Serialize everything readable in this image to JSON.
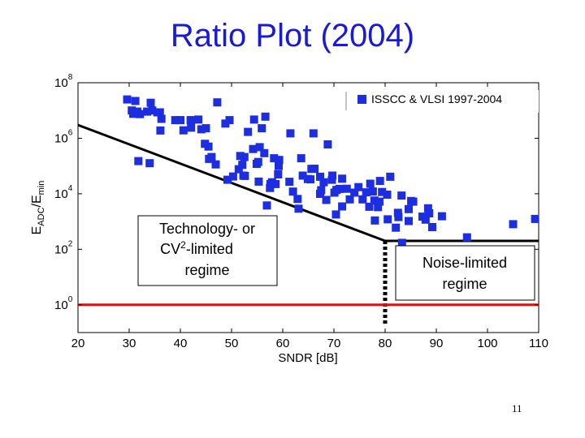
{
  "slide": {
    "title": "Ratio Plot (2004)",
    "page_number": "11"
  },
  "colors": {
    "marker": "#1c2ee0",
    "trend": "#000000",
    "floor": "#e01010",
    "title": "#1a1ad6"
  },
  "chart_data": {
    "type": "scatter",
    "title": "",
    "xlabel": "SNDR [dB]",
    "ylabel": "E_ADC/E_min",
    "xscale": "linear",
    "yscale": "log",
    "xlim": [
      20,
      110
    ],
    "ylim": [
      0.1,
      100000000
    ],
    "xticks": [
      20,
      30,
      40,
      50,
      60,
      70,
      80,
      90,
      100,
      110
    ],
    "yticks": [
      {
        "value": 1,
        "base": "10",
        "exp": "0"
      },
      {
        "value": 100,
        "base": "10",
        "exp": "2"
      },
      {
        "value": 10000,
        "base": "10",
        "exp": "4"
      },
      {
        "value": 1000000,
        "base": "10",
        "exp": "6"
      },
      {
        "value": 100000000,
        "base": "10",
        "exp": "8"
      }
    ],
    "grid": false,
    "legend_position": "top-right",
    "series": [
      {
        "name": "ISSCC & VLSI 1997-2004",
        "marker": "square",
        "points": [
          [
            29.6,
            25000000.0
          ],
          [
            30.5,
            10000000.0
          ],
          [
            30.8,
            7600000.0
          ],
          [
            31.2,
            22000000.0
          ],
          [
            31.6,
            9100000.0
          ],
          [
            31.8,
            150000.0
          ],
          [
            32.1,
            7400000.0
          ],
          [
            33.5,
            9100000.0
          ],
          [
            34.0,
            126000.0
          ],
          [
            34.2,
            19000000.0
          ],
          [
            34.5,
            10000000.0
          ],
          [
            35.5,
            8600000.0
          ],
          [
            36.0,
            8600000.0
          ],
          [
            36.3,
            5000000.0
          ],
          [
            36.1,
            1900000.0
          ],
          [
            39.0,
            4500000.0
          ],
          [
            40.0,
            4500000.0
          ],
          [
            40.6,
            1920000.0
          ],
          [
            42.0,
            4500000.0
          ],
          [
            42.1,
            2400000.0
          ],
          [
            43.5,
            4700000.0
          ],
          [
            44.1,
            2100000.0
          ],
          [
            44.8,
            630000.0
          ],
          [
            45.0,
            2300000.0
          ],
          [
            45.5,
            500000.0
          ],
          [
            45.6,
            180000.0
          ],
          [
            46.1,
            210000.0
          ],
          [
            46.9,
            114000.0
          ],
          [
            47.2,
            19600000.0
          ],
          [
            48.8,
            3400000.0
          ],
          [
            49.2,
            32000.0
          ],
          [
            49.6,
            4500000.0
          ],
          [
            50.3,
            42000.0
          ],
          [
            51.4,
            77000.0
          ],
          [
            51.7,
            230000.0
          ],
          [
            52.1,
            110000.0
          ],
          [
            52.3,
            45000.0
          ],
          [
            52.5,
            210000.0
          ],
          [
            52.6,
            44000.0
          ],
          [
            53.2,
            1700000.0
          ],
          [
            54.2,
            410000.0
          ],
          [
            54.4,
            4700000.0
          ],
          [
            54.9,
            120000.0
          ],
          [
            55.2,
            140000.0
          ],
          [
            55.3,
            27400.0
          ],
          [
            55.5,
            480000.0
          ],
          [
            55.9,
            2300000.0
          ],
          [
            56.4,
            290000.0
          ],
          [
            56.6,
            6000000.0
          ],
          [
            56.9,
            3800.0
          ],
          [
            57.5,
            16200.0
          ],
          [
            57.6,
            22400.0
          ],
          [
            57.9,
            26000.0
          ],
          [
            58.3,
            190000.0
          ],
          [
            58.6,
            22400.0
          ],
          [
            59.1,
            50000.0
          ],
          [
            59.2,
            100000.0
          ],
          [
            59.3,
            165000.0
          ],
          [
            61.3,
            27000.0
          ],
          [
            61.5,
            1500000.0
          ],
          [
            62.0,
            12000.0
          ],
          [
            62.9,
            6500.0
          ],
          [
            63.1,
            2900.0
          ],
          [
            63.6,
            190000.0
          ],
          [
            63.9,
            45000.0
          ],
          [
            64.9,
            34000.0
          ],
          [
            65.4,
            33000.0
          ],
          [
            65.6,
            79000.0
          ],
          [
            66.0,
            1500000.0
          ],
          [
            66.2,
            80000.0
          ],
          [
            67.3,
            9900.0
          ],
          [
            67.3,
            41000.0
          ],
          [
            67.5,
            13400.0
          ],
          [
            68.0,
            26000.0
          ],
          [
            68.5,
            6000.0
          ],
          [
            68.8,
            600000.0
          ],
          [
            69.6,
            32000.0
          ],
          [
            69.7,
            45000.0
          ],
          [
            70.1,
            11000.0
          ],
          [
            70.4,
            1800.0
          ],
          [
            70.5,
            13700.0
          ],
          [
            71.1,
            15000.0
          ],
          [
            71.6,
            35000.0
          ],
          [
            71.6,
            3500.0
          ],
          [
            72.5,
            15200.0
          ],
          [
            73.1,
            6300.0
          ],
          [
            74.0,
            11000.0
          ],
          [
            74.8,
            17300.0
          ],
          [
            75.6,
            6300.0
          ],
          [
            76.3,
            11300.0
          ],
          [
            76.9,
            3400.0
          ],
          [
            77.1,
            23000.0
          ],
          [
            77.6,
            12100.0
          ],
          [
            77.9,
            5700.0
          ],
          [
            78.0,
            1090.0
          ],
          [
            78.6,
            3300.0
          ],
          [
            78.9,
            5200.0
          ],
          [
            79.0,
            29000.0
          ],
          [
            79.4,
            11600.0
          ],
          [
            80.4,
            9300.0
          ],
          [
            80.5,
            1200.0
          ],
          [
            81.0,
            41000.0
          ],
          [
            82.1,
            600
          ],
          [
            82.5,
            2050.0
          ],
          [
            82.6,
            1450.0
          ],
          [
            83.2,
            8600.0
          ],
          [
            83.3,
            170
          ],
          [
            84.6,
            2800.0
          ],
          [
            84.6,
            1040.0
          ],
          [
            85.1,
            5500.0
          ],
          [
            85.5,
            5200.0
          ],
          [
            87.3,
            1500.0
          ],
          [
            87.9,
            1170.0
          ],
          [
            88.4,
            3000.0
          ],
          [
            88.6,
            1980.0
          ],
          [
            89.2,
            630
          ],
          [
            91.1,
            1550.0
          ],
          [
            96.0,
            270
          ],
          [
            105.0,
            800
          ],
          [
            109.3,
            1240.0
          ]
        ]
      }
    ],
    "reference_lines": [
      {
        "kind": "trend",
        "style": "solid",
        "points": [
          [
            20,
            3000000
          ],
          [
            80,
            200
          ]
        ]
      },
      {
        "kind": "trend",
        "style": "solid",
        "points": [
          [
            80,
            200
          ],
          [
            110,
            200
          ]
        ]
      },
      {
        "kind": "boundary",
        "style": "dotted",
        "points": [
          [
            80,
            200
          ],
          [
            80,
            0.18
          ]
        ]
      },
      {
        "kind": "floor",
        "style": "solid",
        "points": [
          [
            20,
            1
          ],
          [
            110,
            1
          ]
        ]
      }
    ],
    "annotations": [
      {
        "id": "tech",
        "lines": [
          "Technology- or",
          "CV",
          "2",
          "-limited",
          "regime"
        ]
      },
      {
        "id": "noise",
        "lines": [
          "Noise-limited",
          "regime"
        ]
      }
    ]
  }
}
